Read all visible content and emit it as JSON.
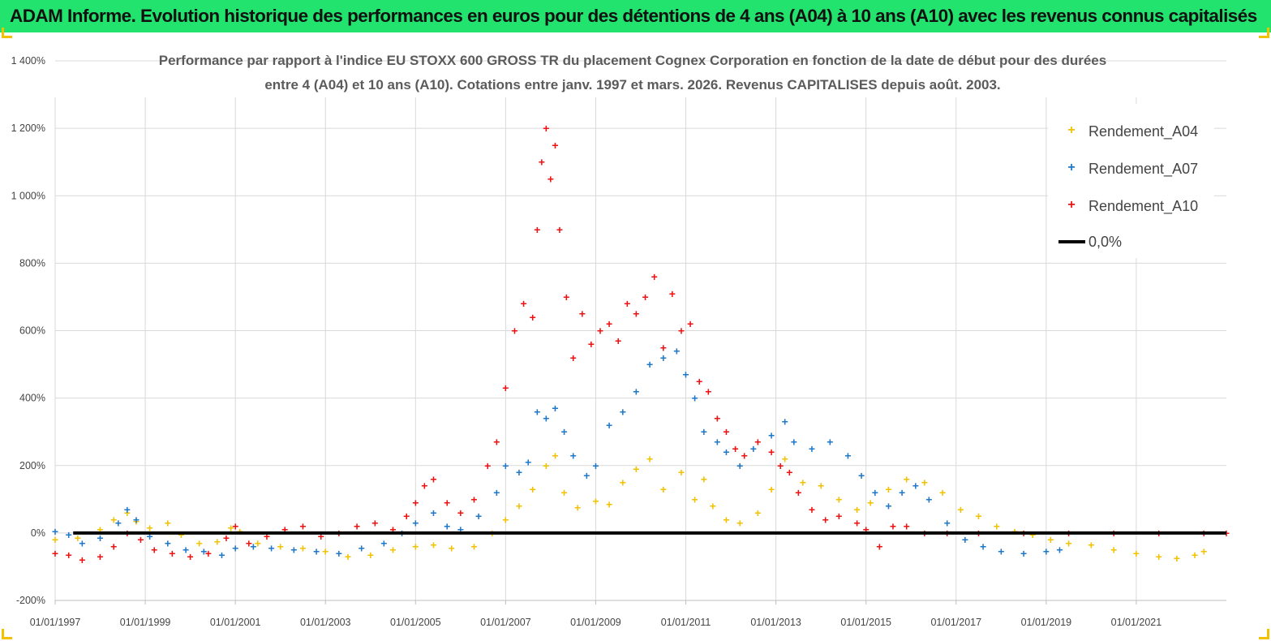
{
  "title": "ADAM Informe. Evolution historique des performances en euros pour des détentions de 4 ans (A04) à 10 ans (A10) avec les revenus connus capitalisés",
  "colors": {
    "banner": "#21e36d",
    "A04": "#f2c200",
    "A07": "#1f78c8",
    "A10": "#ee1111",
    "zero": "#000000"
  },
  "chart_data": {
    "type": "scatter",
    "title_line1": "Performance par rapport à l'indice EU STOXX 600 GROSS TR  du placement Cognex Corporation en fonction de la date de début pour des durées",
    "title_line2": "entre 4 (A04) et 10 ans (A10). Cotations entre janv. 1997 et mars. 2026. Revenus CAPITALISES depuis août. 2003.",
    "y_ticks": [
      "1 400%",
      "1 200%",
      "1 000%",
      "800%",
      "600%",
      "400%",
      "200%",
      "0%",
      "-200%"
    ],
    "ylim": [
      -200,
      1400
    ],
    "x_ticks": [
      "01/01/1997",
      "01/01/1999",
      "01/01/2001",
      "01/01/2003",
      "01/01/2005",
      "01/01/2007",
      "01/01/2009",
      "01/01/2011",
      "01/01/2013",
      "01/01/2015",
      "01/01/2017",
      "01/01/2019",
      "01/01/2021"
    ],
    "xlim": [
      1997.0,
      2023.0
    ],
    "series": [
      {
        "name": "Rendement_A04",
        "color": "#f2c200",
        "points": [
          [
            1997.0,
            -20
          ],
          [
            1997.5,
            -15
          ],
          [
            1998.0,
            10
          ],
          [
            1998.3,
            40
          ],
          [
            1998.6,
            60
          ],
          [
            1998.8,
            35
          ],
          [
            1999.1,
            15
          ],
          [
            1999.5,
            30
          ],
          [
            1999.8,
            -5
          ],
          [
            2000.2,
            -30
          ],
          [
            2000.6,
            -25
          ],
          [
            2000.9,
            15
          ],
          [
            2001.1,
            5
          ],
          [
            2001.5,
            -30
          ],
          [
            2002.0,
            -40
          ],
          [
            2002.5,
            -45
          ],
          [
            2003.0,
            -55
          ],
          [
            2003.5,
            -70
          ],
          [
            2004.0,
            -65
          ],
          [
            2004.5,
            -50
          ],
          [
            2005.0,
            -40
          ],
          [
            2005.4,
            -35
          ],
          [
            2005.8,
            -45
          ],
          [
            2006.3,
            -40
          ],
          [
            2006.7,
            0
          ],
          [
            2007.0,
            40
          ],
          [
            2007.3,
            80
          ],
          [
            2007.6,
            130
          ],
          [
            2007.9,
            200
          ],
          [
            2008.1,
            230
          ],
          [
            2008.3,
            120
          ],
          [
            2008.6,
            75
          ],
          [
            2009.0,
            95
          ],
          [
            2009.3,
            85
          ],
          [
            2009.6,
            150
          ],
          [
            2009.9,
            190
          ],
          [
            2010.2,
            220
          ],
          [
            2010.5,
            130
          ],
          [
            2010.9,
            180
          ],
          [
            2011.2,
            100
          ],
          [
            2011.4,
            160
          ],
          [
            2011.6,
            80
          ],
          [
            2011.9,
            40
          ],
          [
            2012.2,
            30
          ],
          [
            2012.6,
            60
          ],
          [
            2012.9,
            130
          ],
          [
            2013.2,
            220
          ],
          [
            2013.6,
            150
          ],
          [
            2014.0,
            140
          ],
          [
            2014.4,
            100
          ],
          [
            2014.8,
            70
          ],
          [
            2015.1,
            90
          ],
          [
            2015.5,
            130
          ],
          [
            2015.9,
            160
          ],
          [
            2016.3,
            150
          ],
          [
            2016.7,
            120
          ],
          [
            2017.1,
            70
          ],
          [
            2017.5,
            50
          ],
          [
            2017.9,
            20
          ],
          [
            2018.3,
            5
          ],
          [
            2018.7,
            -5
          ],
          [
            2019.1,
            -20
          ],
          [
            2019.5,
            -30
          ],
          [
            2020.0,
            -35
          ],
          [
            2020.5,
            -50
          ],
          [
            2021.0,
            -60
          ],
          [
            2021.5,
            -70
          ],
          [
            2021.9,
            -75
          ],
          [
            2022.3,
            -65
          ],
          [
            2022.5,
            -55
          ]
        ]
      },
      {
        "name": "Rendement_A07",
        "color": "#1f78c8",
        "points": [
          [
            1997.0,
            5
          ],
          [
            1997.3,
            -5
          ],
          [
            1997.6,
            -30
          ],
          [
            1998.0,
            -15
          ],
          [
            1998.4,
            30
          ],
          [
            1998.6,
            70
          ],
          [
            1998.8,
            40
          ],
          [
            1999.1,
            -10
          ],
          [
            1999.5,
            -30
          ],
          [
            1999.9,
            -50
          ],
          [
            2000.3,
            -55
          ],
          [
            2000.7,
            -65
          ],
          [
            2001.0,
            -45
          ],
          [
            2001.4,
            -40
          ],
          [
            2001.8,
            -45
          ],
          [
            2002.3,
            -50
          ],
          [
            2002.8,
            -55
          ],
          [
            2003.3,
            -60
          ],
          [
            2003.8,
            -45
          ],
          [
            2004.3,
            -30
          ],
          [
            2004.7,
            0
          ],
          [
            2005.0,
            30
          ],
          [
            2005.4,
            60
          ],
          [
            2005.7,
            20
          ],
          [
            2006.0,
            10
          ],
          [
            2006.4,
            50
          ],
          [
            2006.8,
            120
          ],
          [
            2007.0,
            200
          ],
          [
            2007.3,
            180
          ],
          [
            2007.5,
            210
          ],
          [
            2007.7,
            360
          ],
          [
            2007.9,
            340
          ],
          [
            2008.1,
            370
          ],
          [
            2008.3,
            300
          ],
          [
            2008.5,
            230
          ],
          [
            2008.8,
            170
          ],
          [
            2009.0,
            200
          ],
          [
            2009.3,
            320
          ],
          [
            2009.6,
            360
          ],
          [
            2009.9,
            420
          ],
          [
            2010.2,
            500
          ],
          [
            2010.5,
            520
          ],
          [
            2010.8,
            540
          ],
          [
            2011.0,
            470
          ],
          [
            2011.2,
            400
          ],
          [
            2011.4,
            300
          ],
          [
            2011.7,
            270
          ],
          [
            2011.9,
            240
          ],
          [
            2012.2,
            200
          ],
          [
            2012.5,
            250
          ],
          [
            2012.9,
            290
          ],
          [
            2013.2,
            330
          ],
          [
            2013.4,
            270
          ],
          [
            2013.8,
            250
          ],
          [
            2014.2,
            270
          ],
          [
            2014.6,
            230
          ],
          [
            2014.9,
            170
          ],
          [
            2015.2,
            120
          ],
          [
            2015.5,
            80
          ],
          [
            2015.8,
            120
          ],
          [
            2016.1,
            140
          ],
          [
            2016.4,
            100
          ],
          [
            2016.8,
            30
          ],
          [
            2017.2,
            -20
          ],
          [
            2017.6,
            -40
          ],
          [
            2018.0,
            -55
          ],
          [
            2018.5,
            -60
          ],
          [
            2019.0,
            -55
          ],
          [
            2019.3,
            -50
          ]
        ]
      },
      {
        "name": "Rendement_A10",
        "color": "#ee1111",
        "points": [
          [
            1997.0,
            -60
          ],
          [
            1997.3,
            -65
          ],
          [
            1997.6,
            -80
          ],
          [
            1998.0,
            -70
          ],
          [
            1998.3,
            -40
          ],
          [
            1998.6,
            0
          ],
          [
            1998.9,
            -20
          ],
          [
            1999.2,
            -50
          ],
          [
            1999.6,
            -60
          ],
          [
            2000.0,
            -70
          ],
          [
            2000.4,
            -60
          ],
          [
            2000.8,
            -15
          ],
          [
            2001.0,
            20
          ],
          [
            2001.3,
            -30
          ],
          [
            2001.7,
            -10
          ],
          [
            2002.1,
            10
          ],
          [
            2002.5,
            20
          ],
          [
            2002.9,
            -10
          ],
          [
            2003.3,
            0
          ],
          [
            2003.7,
            20
          ],
          [
            2004.1,
            30
          ],
          [
            2004.5,
            10
          ],
          [
            2004.8,
            50
          ],
          [
            2005.0,
            90
          ],
          [
            2005.2,
            140
          ],
          [
            2005.4,
            160
          ],
          [
            2005.7,
            90
          ],
          [
            2006.0,
            60
          ],
          [
            2006.3,
            100
          ],
          [
            2006.6,
            200
          ],
          [
            2006.8,
            270
          ],
          [
            2007.0,
            430
          ],
          [
            2007.2,
            600
          ],
          [
            2007.4,
            680
          ],
          [
            2007.6,
            640
          ],
          [
            2007.7,
            900
          ],
          [
            2007.8,
            1100
          ],
          [
            2007.9,
            1200
          ],
          [
            2008.0,
            1050
          ],
          [
            2008.1,
            1150
          ],
          [
            2008.2,
            900
          ],
          [
            2008.35,
            700
          ],
          [
            2008.5,
            520
          ],
          [
            2008.7,
            650
          ],
          [
            2008.9,
            560
          ],
          [
            2009.1,
            600
          ],
          [
            2009.3,
            620
          ],
          [
            2009.5,
            570
          ],
          [
            2009.7,
            680
          ],
          [
            2009.9,
            650
          ],
          [
            2010.1,
            700
          ],
          [
            2010.3,
            760
          ],
          [
            2010.5,
            550
          ],
          [
            2010.7,
            710
          ],
          [
            2010.9,
            600
          ],
          [
            2011.1,
            620
          ],
          [
            2011.3,
            450
          ],
          [
            2011.5,
            420
          ],
          [
            2011.7,
            340
          ],
          [
            2011.9,
            300
          ],
          [
            2012.1,
            250
          ],
          [
            2012.3,
            230
          ],
          [
            2012.6,
            270
          ],
          [
            2012.9,
            240
          ],
          [
            2013.1,
            200
          ],
          [
            2013.3,
            180
          ],
          [
            2013.5,
            120
          ],
          [
            2013.8,
            70
          ],
          [
            2014.1,
            40
          ],
          [
            2014.4,
            50
          ],
          [
            2014.8,
            30
          ],
          [
            2015.0,
            10
          ],
          [
            2015.3,
            -40
          ],
          [
            2015.6,
            20
          ],
          [
            2015.9,
            20
          ],
          [
            2016.3,
            0
          ],
          [
            2016.8,
            0
          ],
          [
            2017.5,
            0
          ],
          [
            2018.5,
            0
          ],
          [
            2019.5,
            0
          ],
          [
            2020.5,
            0
          ],
          [
            2021.5,
            0
          ],
          [
            2022.5,
            0
          ],
          [
            2023.0,
            0
          ]
        ]
      }
    ],
    "reference_line": {
      "name": "0,0%",
      "value": 0
    },
    "legend": [
      "Rendement_A04",
      "Rendement_A07",
      "Rendement_A10",
      "0,0%"
    ],
    "legend_position": "top-right"
  }
}
